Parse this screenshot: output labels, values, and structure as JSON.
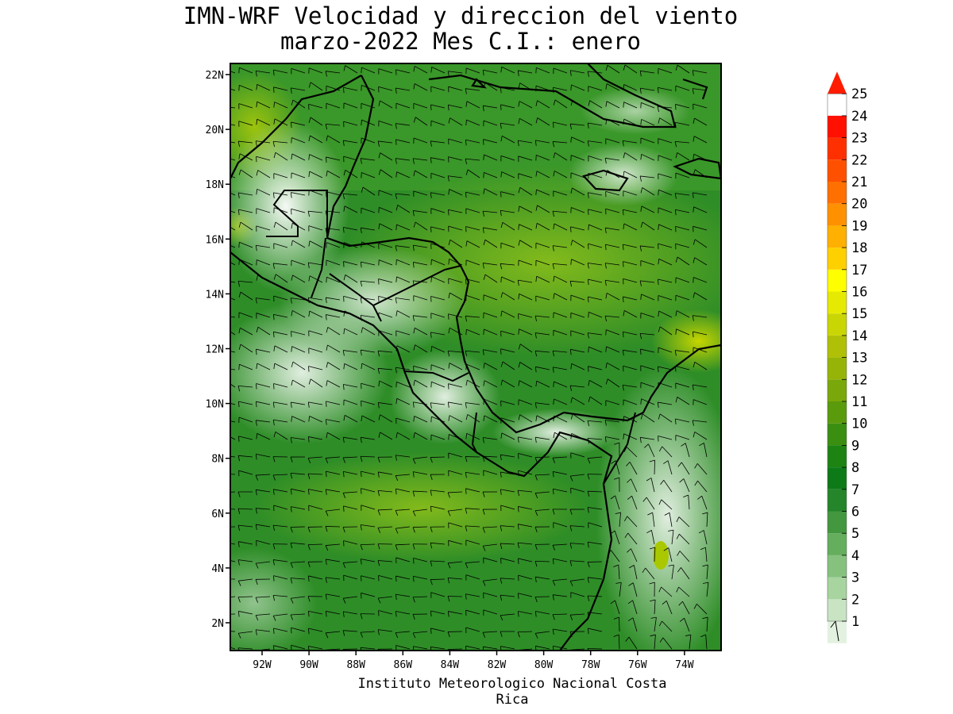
{
  "title_line1": "IMN-WRF Velocidad y direccion del viento",
  "title_line2": "marzo-2022 Mes C.I.: enero",
  "credit": "Instituto Meteorologico Nacional Costa Rica",
  "lat_labels": [
    "22N",
    "20N",
    "18N",
    "16N",
    "14N",
    "12N",
    "10N",
    "8N",
    "6N",
    "4N",
    "2N"
  ],
  "lon_labels": [
    "92W",
    "90W",
    "88W",
    "86W",
    "84W",
    "82W",
    "80W",
    "78W",
    "76W",
    "74W"
  ],
  "colorbar": {
    "labels": [
      "1",
      "2",
      "3",
      "4",
      "5",
      "6",
      "7",
      "8",
      "9",
      "10",
      "11",
      "12",
      "13",
      "14",
      "15",
      "16",
      "17",
      "18",
      "19",
      "20",
      "21",
      "22",
      "23",
      "24",
      "25"
    ],
    "colors": [
      "#ffffff",
      "#e3f1e0",
      "#c8e4c3",
      "#a7d49f",
      "#86c27e",
      "#64ae5d",
      "#43973f",
      "#24852a",
      "#0d7a18",
      "#1d8414",
      "#3a8f10",
      "#5a9b0c",
      "#7aa80a",
      "#96b408",
      "#b0c006",
      "#cad604",
      "#e6ea02",
      "#ffff00",
      "#ffd000",
      "#ffb000",
      "#ff9000",
      "#ff7000",
      "#ff5000",
      "#ff3000",
      "#ff1000"
    ]
  }
}
